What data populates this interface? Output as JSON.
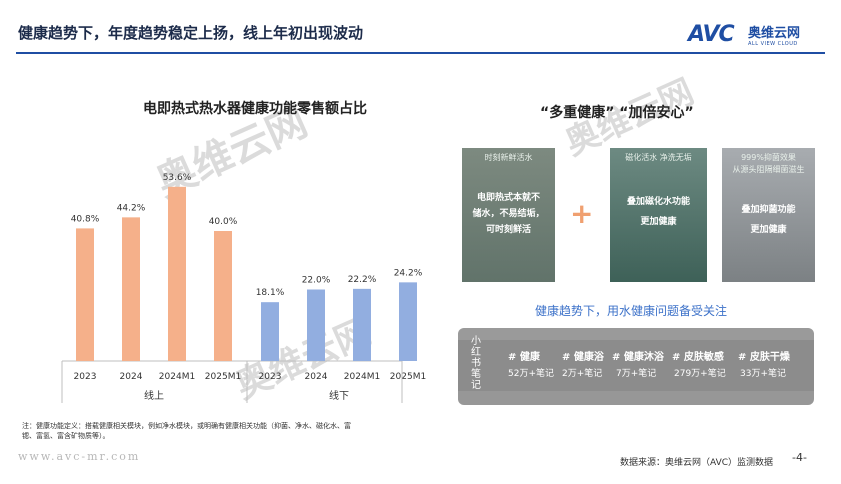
{
  "header": {
    "title": "健康趋势下，年度趋势稳定上扬，线上年初出现波动",
    "logo_mark": "AVC",
    "logo_cn": "奥维云网",
    "logo_en": "ALL VIEW CLOUD"
  },
  "watermark": {
    "text": "奥维云网"
  },
  "chart_data": {
    "type": "bar",
    "title": "电即热式热水器健康功能零售额占比",
    "groups": [
      {
        "name": "线上",
        "color": "#f5b08a",
        "categories": [
          "2023",
          "2024",
          "2024M1",
          "2025M1"
        ],
        "values": [
          40.8,
          44.2,
          53.6,
          40.0
        ],
        "labels": [
          "40.8%",
          "44.2%",
          "53.6%",
          "40.0%"
        ]
      },
      {
        "name": "线下",
        "color": "#92aee0",
        "categories": [
          "2023",
          "2024",
          "2024M1",
          "2025M1"
        ],
        "values": [
          18.1,
          22.0,
          22.2,
          24.2
        ],
        "labels": [
          "18.1%",
          "22.0%",
          "22.2%",
          "24.2%"
        ]
      }
    ],
    "ylim": [
      0,
      60
    ],
    "grid": false
  },
  "note": "注：健康功能定义：搭载健康相关模块，例如净水模块，或明确有健康相关功能（抑菌、净水、磁化水、富锶、富氢、富含矿物质等）。",
  "footer": {
    "url": "www.avc-mr.com",
    "source": "数据来源：奥维云网（AVC）监测数据",
    "page": "-4-"
  },
  "right": {
    "title": "“多重健康”  “加倍安心”",
    "panels": [
      {
        "top": "时刻新鲜活水",
        "lines": [
          "电即热式本就不",
          "储水，不易结垢，",
          "可时刻鲜活"
        ]
      },
      {
        "top": "磁化活水 净洗无垢",
        "lines": [
          "叠加磁化水功能",
          "更加健康"
        ]
      },
      {
        "top": "999%抑菌效果\n从源头阻隔细菌滋生",
        "lines": [
          "叠加抑菌功能",
          "更加健康"
        ]
      }
    ],
    "plus": "+",
    "caption": "健康趋势下，用水健康问题备受关注",
    "xhs_label": "小红书笔记",
    "tags": [
      {
        "name": "# 健康",
        "count": "52万+笔记"
      },
      {
        "name": "# 健康浴",
        "count": "2万+笔记"
      },
      {
        "name": "# 健康沐浴",
        "count": "7万+笔记"
      },
      {
        "name": "# 皮肤敏感",
        "count": "279万+笔记"
      },
      {
        "name": "# 皮肤干燥",
        "count": "33万+笔记"
      }
    ]
  }
}
